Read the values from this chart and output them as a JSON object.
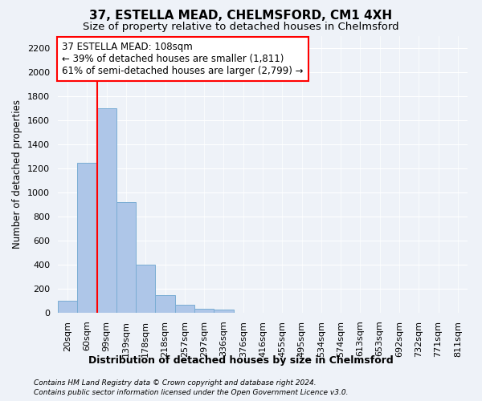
{
  "title": "37, ESTELLA MEAD, CHELMSFORD, CM1 4XH",
  "subtitle": "Size of property relative to detached houses in Chelmsford",
  "xlabel": "Distribution of detached houses by size in Chelmsford",
  "ylabel": "Number of detached properties",
  "categories": [
    "20sqm",
    "60sqm",
    "99sqm",
    "139sqm",
    "178sqm",
    "218sqm",
    "257sqm",
    "297sqm",
    "336sqm",
    "376sqm",
    "416sqm",
    "455sqm",
    "495sqm",
    "534sqm",
    "574sqm",
    "613sqm",
    "653sqm",
    "692sqm",
    "732sqm",
    "771sqm",
    "811sqm"
  ],
  "bar_values": [
    100,
    1250,
    1700,
    920,
    400,
    150,
    65,
    35,
    25,
    0,
    0,
    0,
    0,
    0,
    0,
    0,
    0,
    0,
    0,
    0,
    0
  ],
  "bar_color": "#aec6e8",
  "bar_edge_color": "#7aadd4",
  "vline_x": 1.5,
  "vline_color": "red",
  "annotation_title": "37 ESTELLA MEAD: 108sqm",
  "annotation_line1": "← 39% of detached houses are smaller (1,811)",
  "annotation_line2": "61% of semi-detached houses are larger (2,799) →",
  "annotation_box_color": "white",
  "annotation_box_edge": "red",
  "ylim": [
    0,
    2300
  ],
  "yticks": [
    0,
    200,
    400,
    600,
    800,
    1000,
    1200,
    1400,
    1600,
    1800,
    2000,
    2200
  ],
  "footer1": "Contains HM Land Registry data © Crown copyright and database right 2024.",
  "footer2": "Contains public sector information licensed under the Open Government Licence v3.0.",
  "bg_color": "#eef2f8",
  "plot_bg_color": "#eef2f8",
  "title_fontsize": 11,
  "subtitle_fontsize": 9.5,
  "tick_fontsize": 8,
  "ylabel_fontsize": 8.5,
  "xlabel_fontsize": 9,
  "annotation_fontsize": 8.5,
  "footer_fontsize": 6.5
}
